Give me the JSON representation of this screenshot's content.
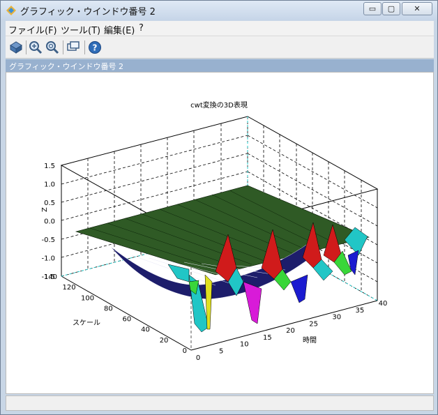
{
  "window": {
    "title": "グラフィック・ウインドウ番号 2",
    "controls": {
      "minimize": "▭",
      "maximize": "▢",
      "close": "✕"
    }
  },
  "menu": {
    "items": [
      "ファイル(F)",
      "ツール(T)",
      "編集(E)",
      "?"
    ]
  },
  "toolbar": {
    "buttons": [
      {
        "name": "rotate-icon"
      },
      {
        "name": "zoom-in-icon"
      },
      {
        "name": "zoom-reset-icon"
      },
      {
        "name": "datatip-icon"
      },
      {
        "name": "help-icon"
      }
    ]
  },
  "figure": {
    "header": "グラフィック・ウインドウ番号 2"
  },
  "chart_data": {
    "type": "surface3d",
    "title": "cwt変換の3D表現",
    "xlabel": "時間",
    "ylabel": "スケール",
    "zlabel": "Z",
    "xlim": [
      0,
      40
    ],
    "ylim": [
      0,
      140
    ],
    "zlim": [
      -1.5,
      1.5
    ],
    "x_ticks": [
      "0",
      "5",
      "10",
      "15",
      "20",
      "25",
      "30",
      "35",
      "40"
    ],
    "y_ticks": [
      "0",
      "20",
      "40",
      "60",
      "80",
      "100",
      "120",
      "140"
    ],
    "z_ticks": [
      "1.5",
      "1.0",
      "0.5",
      "0.0",
      "-0.5",
      "-1.0",
      "-1.5"
    ],
    "grid": true,
    "colors": {
      "surface_top": "#2f5a25",
      "surface_mid": "#1d1d6b",
      "peaks": [
        "#d01b1b",
        "#21c6c6",
        "#1b1bd0",
        "#39d639",
        "#d81bd8",
        "#e0e020"
      ]
    }
  }
}
